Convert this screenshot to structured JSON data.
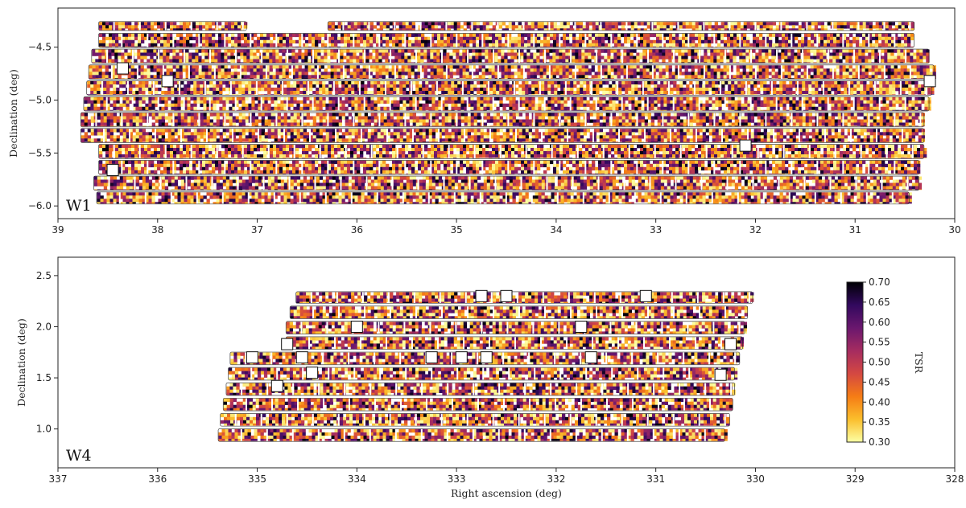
{
  "chart_data": [
    {
      "type": "heatmap",
      "field": "W1",
      "xlabel": "",
      "ylabel": "Declination (deg)",
      "xlim": [
        39,
        30
      ],
      "ylim": [
        -6.12,
        -4.13
      ],
      "xticks": [
        39,
        38,
        37,
        36,
        35,
        34,
        33,
        32,
        31,
        30
      ],
      "yticks": [
        -6.0,
        -5.5,
        -5.0,
        -4.5
      ],
      "ytick_labels": [
        "−6.0",
        "−5.5",
        "−5.0",
        "−4.5"
      ],
      "rows": [
        {
          "dec": [
            -4.35,
            -4.25
          ],
          "ra": [
            [
              38.6,
              37.1
            ],
            [
              36.3,
              30.4
            ]
          ]
        },
        {
          "dec": [
            -4.51,
            -4.36
          ],
          "ra": [
            [
              38.6,
              30.4
            ]
          ]
        },
        {
          "dec": [
            -4.66,
            -4.51
          ],
          "ra": [
            [
              38.67,
              30.25
            ]
          ]
        },
        {
          "dec": [
            -4.81,
            -4.66
          ],
          "ra": [
            [
              38.7,
              30.2
            ]
          ]
        },
        {
          "dec": [
            -4.96,
            -4.81
          ],
          "ra": [
            [
              38.72,
              30.22
            ]
          ]
        },
        {
          "dec": [
            -5.11,
            -4.96
          ],
          "ra": [
            [
              38.75,
              30.25
            ]
          ]
        },
        {
          "dec": [
            -5.26,
            -5.11
          ],
          "ra": [
            [
              38.78,
              30.3
            ]
          ]
        },
        {
          "dec": [
            -5.41,
            -5.26
          ],
          "ra": [
            [
              38.78,
              30.3
            ]
          ]
        },
        {
          "dec": [
            -5.56,
            -5.41
          ],
          "ra": [
            [
              38.6,
              30.3
            ]
          ]
        },
        {
          "dec": [
            -5.71,
            -5.56
          ],
          "ra": [
            [
              38.6,
              30.35
            ]
          ]
        },
        {
          "dec": [
            -5.86,
            -5.71
          ],
          "ra": [
            [
              38.65,
              30.35
            ]
          ]
        },
        {
          "dec": [
            -5.99,
            -5.86
          ],
          "ra": [
            [
              38.62,
              30.45
            ]
          ]
        }
      ],
      "masked": [
        [
          38.35,
          -4.7
        ],
        [
          37.9,
          -4.82
        ],
        [
          32.1,
          -5.43
        ],
        [
          30.25,
          -4.82
        ],
        [
          38.45,
          -5.66
        ]
      ]
    },
    {
      "type": "heatmap",
      "field": "W4",
      "xlabel": "Right ascension (deg)",
      "ylabel": "Declination (deg)",
      "xlim": [
        337,
        328
      ],
      "ylim": [
        0.62,
        2.68
      ],
      "xticks": [
        337,
        336,
        335,
        334,
        333,
        332,
        331,
        330,
        329,
        328
      ],
      "yticks": [
        1.0,
        1.5,
        2.0,
        2.5
      ],
      "ytick_labels": [
        "1.0",
        "1.5",
        "2.0",
        "2.5"
      ],
      "rows": [
        {
          "dec": [
            2.22,
            2.35
          ],
          "ra": [
            [
              334.62,
              330.02
            ]
          ]
        },
        {
          "dec": [
            2.07,
            2.21
          ],
          "ra": [
            [
              334.68,
              330.07
            ]
          ]
        },
        {
          "dec": [
            1.92,
            2.06
          ],
          "ra": [
            [
              334.72,
              330.1
            ]
          ]
        },
        {
          "dec": [
            1.77,
            1.91
          ],
          "ra": [
            [
              334.72,
              330.12
            ]
          ]
        },
        {
          "dec": [
            1.62,
            1.76
          ],
          "ra": [
            [
              335.28,
              330.15
            ]
          ]
        },
        {
          "dec": [
            1.47,
            1.61
          ],
          "ra": [
            [
              335.3,
              330.2
            ]
          ]
        },
        {
          "dec": [
            1.32,
            1.46
          ],
          "ra": [
            [
              335.32,
              330.2
            ]
          ]
        },
        {
          "dec": [
            1.17,
            1.31
          ],
          "ra": [
            [
              335.35,
              330.22
            ]
          ]
        },
        {
          "dec": [
            1.02,
            1.16
          ],
          "ra": [
            [
              335.38,
              330.25
            ]
          ]
        },
        {
          "dec": [
            0.87,
            1.01
          ],
          "ra": [
            [
              335.4,
              330.3
            ]
          ]
        }
      ],
      "masked": [
        [
          332.75,
          2.3
        ],
        [
          332.5,
          2.3
        ],
        [
          331.1,
          2.3
        ],
        [
          334.0,
          2.0
        ],
        [
          331.75,
          2.0
        ],
        [
          334.7,
          1.83
        ],
        [
          330.25,
          1.83
        ],
        [
          335.05,
          1.7
        ],
        [
          334.55,
          1.7
        ],
        [
          333.25,
          1.7
        ],
        [
          332.95,
          1.7
        ],
        [
          332.7,
          1.7
        ],
        [
          331.65,
          1.7
        ],
        [
          334.45,
          1.55
        ],
        [
          330.35,
          1.53
        ],
        [
          334.8,
          1.42
        ]
      ]
    }
  ],
  "colorbar": {
    "label": "TSR",
    "range": [
      0.3,
      0.7
    ],
    "ticks": [
      "0.70",
      "0.65",
      "0.60",
      "0.55",
      "0.50",
      "0.45",
      "0.40",
      "0.35",
      "0.30"
    ],
    "colormap": "inferno_r",
    "colors": [
      "#fcffa4",
      "#fbbe2c",
      "#f57c15",
      "#d44842",
      "#a52c60",
      "#6a176e",
      "#32095e",
      "#000004"
    ]
  }
}
